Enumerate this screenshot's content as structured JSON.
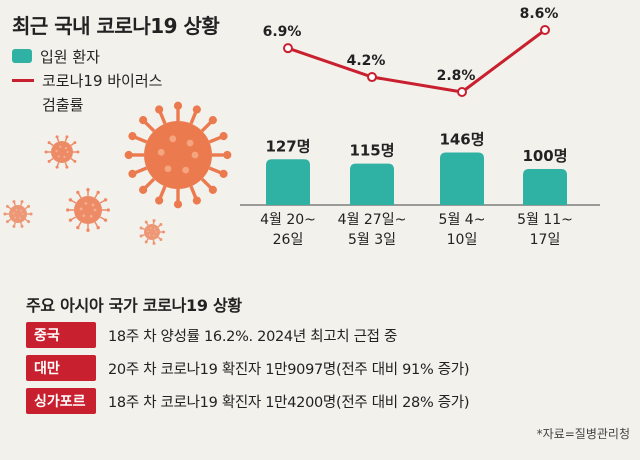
{
  "title": "최근 국내 코로나19 상황",
  "legend": {
    "bar": "입원 환자",
    "line_1": "코로나19 바이러스",
    "line_2": "검출률"
  },
  "colors": {
    "bar": "#2fb1a3",
    "line": "#c8202e",
    "virus": "#ec7a4f"
  },
  "icons": [
    "virus-illustration"
  ],
  "chart_data": {
    "type": "bar",
    "categories": [
      [
        "4월 20~",
        "26일"
      ],
      [
        "4월 27일~",
        "5월 3일"
      ],
      [
        "5월 4~",
        "10일"
      ],
      [
        "5월 11~",
        "17일"
      ]
    ],
    "series": [
      {
        "name": "입원 환자",
        "values": [
          127,
          115,
          146,
          100
        ],
        "labels": [
          "127명",
          "115명",
          "146명",
          "100명"
        ]
      },
      {
        "name": "코로나19 바이러스 검출률",
        "type": "line",
        "values": [
          6.9,
          4.2,
          2.8,
          8.6
        ],
        "labels": [
          "6.9%",
          "4.2%",
          "2.8%",
          "8.6%"
        ]
      }
    ]
  },
  "asia": {
    "title": "주요 아시아 국가 코로나19 상황",
    "rows": [
      {
        "country": "중국",
        "text": "18주 차 양성률 16.2%. 2024년 최고치 근접 중"
      },
      {
        "country": "대만",
        "text": "20주 차 코로나19 확진자 1만9097명(전주 대비 91% 증가)"
      },
      {
        "country": "싱가포르",
        "text": "18주 차 코로나19 확진자 1만4200명(전주 대비 28% 증가)"
      }
    ]
  },
  "source": "*자료=질병관리청"
}
